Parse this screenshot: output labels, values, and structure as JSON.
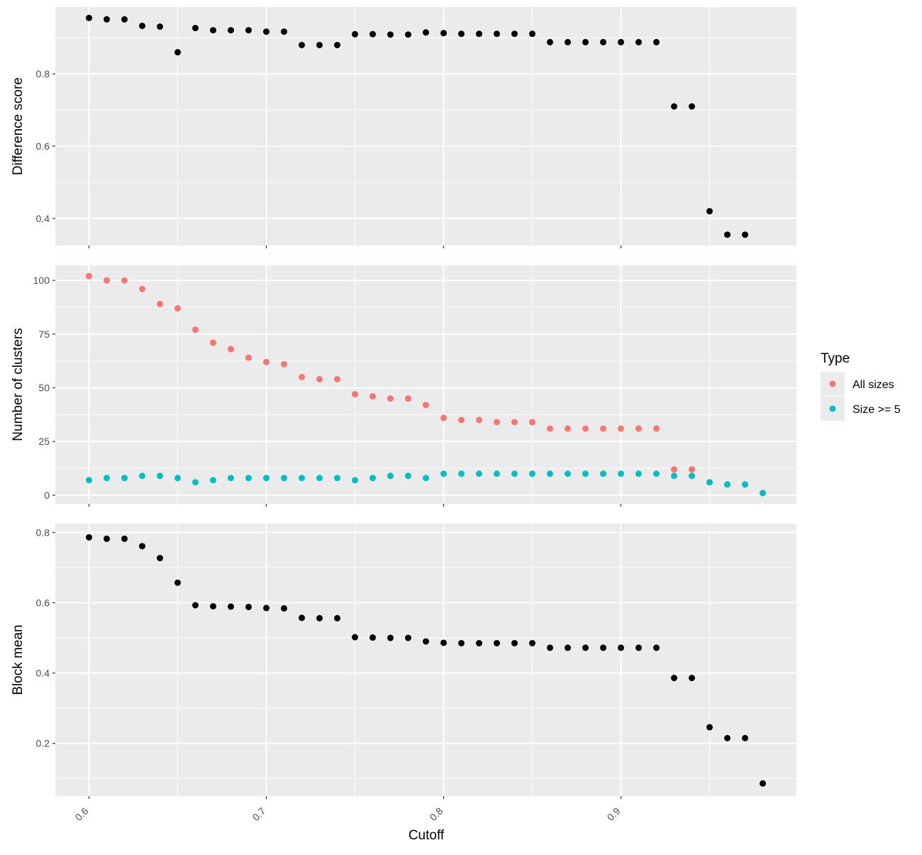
{
  "chart_data": [
    {
      "type": "scatter",
      "title": "",
      "xlabel": "",
      "ylabel": "Difference score",
      "xlim": [
        0.581,
        0.999
      ],
      "ylim": [
        0.325,
        0.985
      ],
      "x_ticks": [
        "0.6",
        "0.7",
        "0.8",
        "0.9"
      ],
      "y_ticks": [
        "0.4",
        "0.6",
        "0.8"
      ],
      "series": [
        {
          "color": "#000000",
          "points": [
            [
              0.6,
              0.955
            ],
            [
              0.61,
              0.951
            ],
            [
              0.62,
              0.951
            ],
            [
              0.63,
              0.933
            ],
            [
              0.64,
              0.931
            ],
            [
              0.65,
              0.86
            ],
            [
              0.66,
              0.927
            ],
            [
              0.67,
              0.921
            ],
            [
              0.68,
              0.921
            ],
            [
              0.69,
              0.921
            ],
            [
              0.7,
              0.917
            ],
            [
              0.71,
              0.917
            ],
            [
              0.72,
              0.88
            ],
            [
              0.73,
              0.88
            ],
            [
              0.74,
              0.88
            ],
            [
              0.75,
              0.91
            ],
            [
              0.76,
              0.91
            ],
            [
              0.77,
              0.909
            ],
            [
              0.78,
              0.909
            ],
            [
              0.79,
              0.915
            ],
            [
              0.8,
              0.913
            ],
            [
              0.81,
              0.911
            ],
            [
              0.82,
              0.911
            ],
            [
              0.83,
              0.911
            ],
            [
              0.84,
              0.911
            ],
            [
              0.85,
              0.911
            ],
            [
              0.86,
              0.888
            ],
            [
              0.87,
              0.888
            ],
            [
              0.88,
              0.888
            ],
            [
              0.89,
              0.888
            ],
            [
              0.9,
              0.888
            ],
            [
              0.91,
              0.888
            ],
            [
              0.92,
              0.888
            ],
            [
              0.93,
              0.71
            ],
            [
              0.94,
              0.71
            ],
            [
              0.95,
              0.42
            ],
            [
              0.96,
              0.355
            ],
            [
              0.97,
              0.355
            ]
          ]
        }
      ]
    },
    {
      "type": "scatter",
      "title": "",
      "xlabel": "",
      "ylabel": "Number of clusters",
      "xlim": [
        0.581,
        0.999
      ],
      "ylim": [
        -4,
        107
      ],
      "x_ticks": [
        "0.6",
        "0.7",
        "0.8",
        "0.9"
      ],
      "y_ticks": [
        "0",
        "25",
        "50",
        "75",
        "100"
      ],
      "series": [
        {
          "name": "All sizes",
          "color": "#F8766D",
          "points": [
            [
              0.6,
              102
            ],
            [
              0.61,
              100
            ],
            [
              0.62,
              100
            ],
            [
              0.63,
              96
            ],
            [
              0.64,
              89
            ],
            [
              0.65,
              87
            ],
            [
              0.66,
              77
            ],
            [
              0.67,
              71
            ],
            [
              0.68,
              68
            ],
            [
              0.69,
              64
            ],
            [
              0.7,
              62
            ],
            [
              0.71,
              61
            ],
            [
              0.72,
              55
            ],
            [
              0.73,
              54
            ],
            [
              0.74,
              54
            ],
            [
              0.75,
              47
            ],
            [
              0.76,
              46
            ],
            [
              0.77,
              45
            ],
            [
              0.78,
              45
            ],
            [
              0.79,
              42
            ],
            [
              0.8,
              36
            ],
            [
              0.81,
              35
            ],
            [
              0.82,
              35
            ],
            [
              0.83,
              34
            ],
            [
              0.84,
              34
            ],
            [
              0.85,
              34
            ],
            [
              0.86,
              31
            ],
            [
              0.87,
              31
            ],
            [
              0.88,
              31
            ],
            [
              0.89,
              31
            ],
            [
              0.9,
              31
            ],
            [
              0.91,
              31
            ],
            [
              0.92,
              31
            ],
            [
              0.93,
              12
            ],
            [
              0.94,
              12
            ],
            [
              0.95,
              6
            ],
            [
              0.96,
              5
            ],
            [
              0.97,
              5
            ],
            [
              0.98,
              1
            ]
          ]
        },
        {
          "name": "Size >= 5",
          "color": "#00BFC4",
          "points": [
            [
              0.6,
              7
            ],
            [
              0.61,
              8
            ],
            [
              0.62,
              8
            ],
            [
              0.63,
              9
            ],
            [
              0.64,
              9
            ],
            [
              0.65,
              8
            ],
            [
              0.66,
              6
            ],
            [
              0.67,
              7
            ],
            [
              0.68,
              8
            ],
            [
              0.69,
              8
            ],
            [
              0.7,
              8
            ],
            [
              0.71,
              8
            ],
            [
              0.72,
              8
            ],
            [
              0.73,
              8
            ],
            [
              0.74,
              8
            ],
            [
              0.75,
              7
            ],
            [
              0.76,
              8
            ],
            [
              0.77,
              9
            ],
            [
              0.78,
              9
            ],
            [
              0.79,
              8
            ],
            [
              0.8,
              10
            ],
            [
              0.81,
              10
            ],
            [
              0.82,
              10
            ],
            [
              0.83,
              10
            ],
            [
              0.84,
              10
            ],
            [
              0.85,
              10
            ],
            [
              0.86,
              10
            ],
            [
              0.87,
              10
            ],
            [
              0.88,
              10
            ],
            [
              0.89,
              10
            ],
            [
              0.9,
              10
            ],
            [
              0.91,
              10
            ],
            [
              0.92,
              10
            ],
            [
              0.93,
              9
            ],
            [
              0.94,
              9
            ],
            [
              0.95,
              6
            ],
            [
              0.96,
              5
            ],
            [
              0.97,
              5
            ],
            [
              0.98,
              1
            ]
          ]
        }
      ]
    },
    {
      "type": "scatter",
      "title": "",
      "xlabel": "Cutoff",
      "ylabel": "Block mean",
      "xlim": [
        0.581,
        0.999
      ],
      "ylim": [
        0.05,
        0.825
      ],
      "x_ticks": [
        "0.6",
        "0.7",
        "0.8",
        "0.9"
      ],
      "y_ticks": [
        "0.2",
        "0.4",
        "0.6",
        "0.8"
      ],
      "series": [
        {
          "color": "#000000",
          "points": [
            [
              0.6,
              0.786
            ],
            [
              0.61,
              0.782
            ],
            [
              0.62,
              0.782
            ],
            [
              0.63,
              0.761
            ],
            [
              0.64,
              0.727
            ],
            [
              0.65,
              0.657
            ],
            [
              0.66,
              0.593
            ],
            [
              0.67,
              0.59
            ],
            [
              0.68,
              0.589
            ],
            [
              0.69,
              0.588
            ],
            [
              0.7,
              0.585
            ],
            [
              0.71,
              0.584
            ],
            [
              0.72,
              0.557
            ],
            [
              0.73,
              0.556
            ],
            [
              0.74,
              0.556
            ],
            [
              0.75,
              0.502
            ],
            [
              0.76,
              0.501
            ],
            [
              0.77,
              0.5
            ],
            [
              0.78,
              0.5
            ],
            [
              0.79,
              0.49
            ],
            [
              0.8,
              0.486
            ],
            [
              0.81,
              0.485
            ],
            [
              0.82,
              0.485
            ],
            [
              0.83,
              0.485
            ],
            [
              0.84,
              0.485
            ],
            [
              0.85,
              0.485
            ],
            [
              0.86,
              0.472
            ],
            [
              0.87,
              0.472
            ],
            [
              0.88,
              0.472
            ],
            [
              0.89,
              0.472
            ],
            [
              0.9,
              0.472
            ],
            [
              0.91,
              0.472
            ],
            [
              0.92,
              0.472
            ],
            [
              0.93,
              0.386
            ],
            [
              0.94,
              0.386
            ],
            [
              0.95,
              0.246
            ],
            [
              0.96,
              0.215
            ],
            [
              0.97,
              0.215
            ],
            [
              0.98,
              0.086
            ]
          ]
        }
      ]
    }
  ],
  "legend": {
    "title": "Type",
    "items": [
      {
        "label": "All sizes",
        "color": "#F8766D"
      },
      {
        "label": "Size >= 5",
        "color": "#00BFC4"
      }
    ]
  },
  "colors": {
    "panel_background": "#EBEBEB",
    "grid_line": "#FFFFFF",
    "axis_text": "#4D4D4D",
    "axis_title": "#000000"
  }
}
